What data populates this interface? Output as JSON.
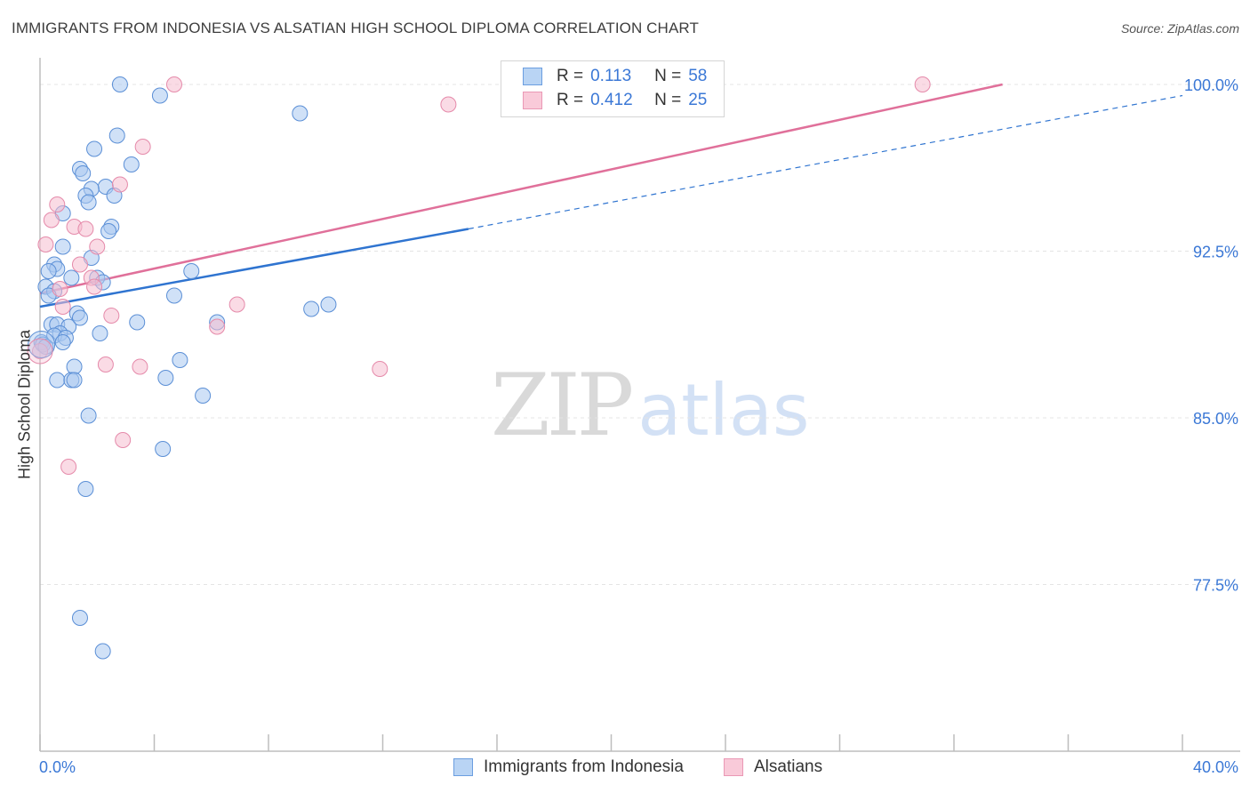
{
  "header": {
    "title": "IMMIGRANTS FROM INDONESIA VS ALSATIAN HIGH SCHOOL DIPLOMA CORRELATION CHART",
    "source": "Source: ZipAtlas.com"
  },
  "watermark": {
    "zip": "ZIP",
    "atlas": "atlas"
  },
  "legend": {
    "r_label": "R =",
    "n_label": "N =",
    "series1": {
      "r": "0.113",
      "n": "58"
    },
    "series2": {
      "r": "0.412",
      "n": "25"
    }
  },
  "bottom_legend": {
    "series1": "Immigrants from Indonesia",
    "series2": "Alsatians"
  },
  "colors": {
    "blue_fill": "#a9c8f0",
    "blue_stroke": "#5b8fd6",
    "blue_line": "#2f74d0",
    "pink_fill": "#f6bdd0",
    "pink_stroke": "#e58aaa",
    "pink_line": "#e0709a",
    "tick_label": "#3b78d6",
    "grid": "#e4e4e4"
  },
  "chart_data": {
    "type": "scatter",
    "title": "IMMIGRANTS FROM INDONESIA VS ALSATIAN HIGH SCHOOL DIPLOMA CORRELATION CHART",
    "xlabel": "",
    "ylabel": "High School Diploma",
    "xlim": [
      0,
      40
    ],
    "ylim": [
      70.0,
      101.0
    ],
    "x_tick_labels": [
      "0.0%",
      "40.0%"
    ],
    "y_ticks": [
      77.5,
      85.0,
      92.5,
      100.0
    ],
    "y_tick_labels": [
      "77.5%",
      "85.0%",
      "92.5%",
      "100.0%"
    ],
    "grid": true,
    "series": [
      {
        "name": "Immigrants from Indonesia",
        "points": [
          [
            2.8,
            100.0
          ],
          [
            4.2,
            99.5
          ],
          [
            9.1,
            98.7
          ],
          [
            2.7,
            97.7
          ],
          [
            1.9,
            97.1
          ],
          [
            3.2,
            96.4
          ],
          [
            1.4,
            96.2
          ],
          [
            1.5,
            96.0
          ],
          [
            2.3,
            95.4
          ],
          [
            1.8,
            95.3
          ],
          [
            1.6,
            95.0
          ],
          [
            2.6,
            95.0
          ],
          [
            1.7,
            94.7
          ],
          [
            0.8,
            94.2
          ],
          [
            2.5,
            93.6
          ],
          [
            2.4,
            93.4
          ],
          [
            0.8,
            92.7
          ],
          [
            1.8,
            92.2
          ],
          [
            0.5,
            91.9
          ],
          [
            0.6,
            91.7
          ],
          [
            0.3,
            91.6
          ],
          [
            5.3,
            91.6
          ],
          [
            1.1,
            91.3
          ],
          [
            2.0,
            91.3
          ],
          [
            2.2,
            91.1
          ],
          [
            0.2,
            90.9
          ],
          [
            0.5,
            90.7
          ],
          [
            0.3,
            90.5
          ],
          [
            4.7,
            90.5
          ],
          [
            10.1,
            90.1
          ],
          [
            9.5,
            89.9
          ],
          [
            1.3,
            89.7
          ],
          [
            1.4,
            89.5
          ],
          [
            3.4,
            89.3
          ],
          [
            6.2,
            89.3
          ],
          [
            0.4,
            89.2
          ],
          [
            0.6,
            89.2
          ],
          [
            1.0,
            89.1
          ],
          [
            0.7,
            88.8
          ],
          [
            2.1,
            88.8
          ],
          [
            0.5,
            88.7
          ],
          [
            0.9,
            88.6
          ],
          [
            0.8,
            88.4
          ],
          [
            0.05,
            88.4
          ],
          [
            0.1,
            88.3
          ],
          [
            0.2,
            88.2
          ],
          [
            4.9,
            87.6
          ],
          [
            1.2,
            87.3
          ],
          [
            4.4,
            86.8
          ],
          [
            0.6,
            86.7
          ],
          [
            1.1,
            86.7
          ],
          [
            1.2,
            86.7
          ],
          [
            5.7,
            86.0
          ],
          [
            1.7,
            85.1
          ],
          [
            4.3,
            83.6
          ],
          [
            1.6,
            81.8
          ],
          [
            1.4,
            76.0
          ],
          [
            2.2,
            74.5
          ]
        ]
      },
      {
        "name": "Alsatians",
        "points": [
          [
            4.7,
            100.0
          ],
          [
            30.9,
            100.0
          ],
          [
            14.3,
            99.1
          ],
          [
            3.6,
            97.2
          ],
          [
            2.8,
            95.5
          ],
          [
            0.6,
            94.6
          ],
          [
            0.4,
            93.9
          ],
          [
            1.2,
            93.6
          ],
          [
            1.6,
            93.5
          ],
          [
            0.2,
            92.8
          ],
          [
            2.0,
            92.7
          ],
          [
            1.4,
            91.9
          ],
          [
            1.8,
            91.3
          ],
          [
            1.9,
            90.9
          ],
          [
            0.7,
            90.8
          ],
          [
            6.9,
            90.1
          ],
          [
            0.8,
            90.0
          ],
          [
            2.5,
            89.6
          ],
          [
            6.2,
            89.1
          ],
          [
            0.0,
            88.0
          ],
          [
            2.3,
            87.4
          ],
          [
            3.5,
            87.3
          ],
          [
            11.9,
            87.2
          ],
          [
            2.9,
            84.0
          ],
          [
            1.0,
            82.8
          ]
        ]
      }
    ],
    "trend_lines": [
      {
        "name": "Immigrants from Indonesia",
        "solid": [
          [
            0.0,
            90.0
          ],
          [
            15.0,
            93.5
          ]
        ],
        "dashed": [
          [
            15.0,
            93.5
          ],
          [
            40.0,
            99.5
          ]
        ]
      },
      {
        "name": "Alsatians",
        "solid": [
          [
            0.0,
            90.6
          ],
          [
            33.7,
            100.0
          ]
        ]
      }
    ]
  }
}
